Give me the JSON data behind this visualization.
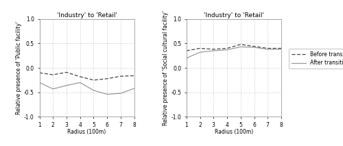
{
  "title": "'Industry' to 'Retail'",
  "xlabel": "Radius (100m)",
  "x": [
    1,
    2,
    3,
    4,
    5,
    6,
    7,
    8
  ],
  "left_ylabel": "Relative presence of 'Public facility'",
  "left_before": [
    -0.1,
    -0.14,
    -0.09,
    -0.18,
    -0.25,
    -0.22,
    -0.17,
    -0.16
  ],
  "left_after": [
    -0.3,
    -0.43,
    -0.36,
    -0.3,
    -0.46,
    -0.54,
    -0.52,
    -0.42
  ],
  "right_ylabel": "Relative presence of 'Social cultural facility'",
  "right_before": [
    0.35,
    0.4,
    0.38,
    0.4,
    0.48,
    0.44,
    0.4,
    0.4
  ],
  "right_after": [
    0.2,
    0.32,
    0.35,
    0.37,
    0.43,
    0.42,
    0.38,
    0.38
  ],
  "ylim": [
    -1.0,
    1.0
  ],
  "yticks": [
    -1.0,
    -0.5,
    0.0,
    0.5,
    1.0
  ],
  "ytick_labels": [
    "-1.0",
    "-0.5",
    "0.0",
    "0.5",
    "1.0"
  ],
  "before_label": "Before transition",
  "after_label": "After transition",
  "line_color_before": "#444444",
  "line_color_after": "#999999",
  "bg_color": "#ffffff",
  "grid_color": "#bbbbbb",
  "title_fontsize": 6.5,
  "label_fontsize": 5.5,
  "tick_fontsize": 5.5,
  "legend_fontsize": 5.5
}
